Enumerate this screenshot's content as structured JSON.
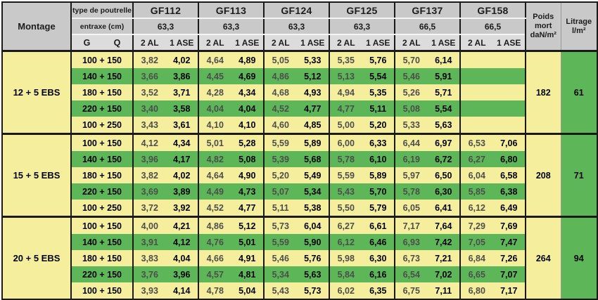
{
  "colors": {
    "yellow": "#f5ef9d",
    "green": "#5db758",
    "header": "#c9c9c9",
    "header-light": "#dcdcdc",
    "border": "#1a1a1a",
    "divider": "#999999",
    "val2": "#4d4d4d"
  },
  "header": {
    "montage_label": "Montage",
    "type_row_label": "type de poutrelle",
    "entraxe_row_label": "entraxe (cm)",
    "g_label": "G",
    "q_label": "Q",
    "al_label": "2 AL",
    "ase_label": "1 ASE",
    "beams": [
      {
        "name": "GF112",
        "entraxe": "63,3"
      },
      {
        "name": "GF113",
        "entraxe": "63,3"
      },
      {
        "name": "GF124",
        "entraxe": "63,3"
      },
      {
        "name": "GF125",
        "entraxe": "63,3"
      },
      {
        "name": "GF137",
        "entraxe": "66,5"
      },
      {
        "name": "GF158",
        "entraxe": "66,5"
      }
    ],
    "poids_lines": [
      "Poids",
      "mort",
      "daN/m²"
    ],
    "litrage_lines": [
      "Litrage",
      "l/m²"
    ]
  },
  "blocks": [
    {
      "montage": "12 + 5 EBS",
      "poids": "182",
      "litrage": "61",
      "rows": [
        {
          "label": "100 + 150",
          "values": [
            [
              "3,82",
              "4,02"
            ],
            [
              "4,64",
              "4,89"
            ],
            [
              "5,05",
              "5,33"
            ],
            [
              "5,35",
              "5,76"
            ],
            [
              "5,70",
              "6,14"
            ],
            [
              "",
              ""
            ]
          ]
        },
        {
          "label": "140 + 150",
          "values": [
            [
              "3,66",
              "3,86"
            ],
            [
              "4,45",
              "4,69"
            ],
            [
              "4,86",
              "5,12"
            ],
            [
              "5,13",
              "5,54"
            ],
            [
              "5,46",
              "5,91"
            ],
            [
              "",
              ""
            ]
          ]
        },
        {
          "label": "180 + 150",
          "values": [
            [
              "3,52",
              "3,71"
            ],
            [
              "4,28",
              "4,34"
            ],
            [
              "4,68",
              "4,93"
            ],
            [
              "4,94",
              "5,35"
            ],
            [
              "5,26",
              "5,71"
            ],
            [
              "",
              ""
            ]
          ]
        },
        {
          "label": "220 + 150",
          "values": [
            [
              "3,40",
              "3,58"
            ],
            [
              "4,04",
              "4,04"
            ],
            [
              "4,52",
              "4,77"
            ],
            [
              "4,77",
              "5,11"
            ],
            [
              "5,08",
              "5,54"
            ],
            [
              "",
              ""
            ]
          ]
        },
        {
          "label": "100 + 250",
          "values": [
            [
              "3,43",
              "3,61"
            ],
            [
              "4,10",
              "4,10"
            ],
            [
              "4,60",
              "4,85"
            ],
            [
              "5,00",
              "5,20"
            ],
            [
              "5,33",
              "5,63"
            ],
            [
              "",
              ""
            ]
          ]
        }
      ]
    },
    {
      "montage": "15 + 5 EBS",
      "poids": "208",
      "litrage": "71",
      "rows": [
        {
          "label": "100 + 150",
          "values": [
            [
              "4,12",
              "4,34"
            ],
            [
              "5,01",
              "5,28"
            ],
            [
              "5,59",
              "5,89"
            ],
            [
              "6,00",
              "6,33"
            ],
            [
              "6,44",
              "6,97"
            ],
            [
              "6,53",
              "7,06"
            ]
          ]
        },
        {
          "label": "140 + 150",
          "values": [
            [
              "3,96",
              "4,17"
            ],
            [
              "4,82",
              "5,08"
            ],
            [
              "5,39",
              "5,68"
            ],
            [
              "5,78",
              "6,10"
            ],
            [
              "6,19",
              "6,72"
            ],
            [
              "6,27",
              "6,80"
            ]
          ]
        },
        {
          "label": "180 + 150",
          "values": [
            [
              "3,82",
              "4,02"
            ],
            [
              "4,64",
              "4,90"
            ],
            [
              "5,20",
              "5,49"
            ],
            [
              "5,59",
              "5,89"
            ],
            [
              "5,97",
              "6,50"
            ],
            [
              "6,04",
              "6,58"
            ]
          ]
        },
        {
          "label": "220 + 150",
          "values": [
            [
              "3,69",
              "3,89"
            ],
            [
              "4,49",
              "4,73"
            ],
            [
              "5,07",
              "5,34"
            ],
            [
              "5,43",
              "5,70"
            ],
            [
              "5,78",
              "6,30"
            ],
            [
              "5,85",
              "6,38"
            ]
          ]
        },
        {
          "label": "100 + 250",
          "values": [
            [
              "3,72",
              "3,92"
            ],
            [
              "4,52",
              "4,77"
            ],
            [
              "5,11",
              "5,38"
            ],
            [
              "5,50",
              "5,79"
            ],
            [
              "6,05",
              "6,41"
            ],
            [
              "6,12",
              "6,49"
            ]
          ]
        }
      ]
    },
    {
      "montage": "20 + 5 EBS",
      "poids": "264",
      "litrage": "94",
      "rows": [
        {
          "label": "100 + 150",
          "values": [
            [
              "4,00",
              "4,21"
            ],
            [
              "4,86",
              "5,12"
            ],
            [
              "5,73",
              "6,04"
            ],
            [
              "6,27",
              "6,61"
            ],
            [
              "7,17",
              "7,64"
            ],
            [
              "7,29",
              "7,69"
            ]
          ]
        },
        {
          "label": "140 + 150",
          "values": [
            [
              "3,91",
              "4,12"
            ],
            [
              "4,76",
              "5,01"
            ],
            [
              "5,59",
              "5,90"
            ],
            [
              "6,12",
              "6,46"
            ],
            [
              "6,93",
              "7,42"
            ],
            [
              "7,05",
              "7,47"
            ]
          ]
        },
        {
          "label": "180 + 150",
          "values": [
            [
              "3,83",
              "4,04"
            ],
            [
              "4,66",
              "4,91"
            ],
            [
              "5,46",
              "5,76"
            ],
            [
              "5,98",
              "6,30"
            ],
            [
              "6,73",
              "7,21"
            ],
            [
              "6,84",
              "7,26"
            ]
          ]
        },
        {
          "label": "220 + 150",
          "values": [
            [
              "3,76",
              "3,96"
            ],
            [
              "4,57",
              "4,81"
            ],
            [
              "5,34",
              "5,63"
            ],
            [
              "5,84",
              "6,16"
            ],
            [
              "6,54",
              "7,02"
            ],
            [
              "6,65",
              "7,07"
            ]
          ]
        },
        {
          "label": "100 + 150",
          "values": [
            [
              "3,93",
              "4,14"
            ],
            [
              "4,78",
              "5,04"
            ],
            [
              "5,43",
              "5,73"
            ],
            [
              "6,02",
              "6,35"
            ],
            [
              "6,75",
              "7,11"
            ],
            [
              "6,80",
              "7,17"
            ]
          ]
        }
      ]
    }
  ]
}
